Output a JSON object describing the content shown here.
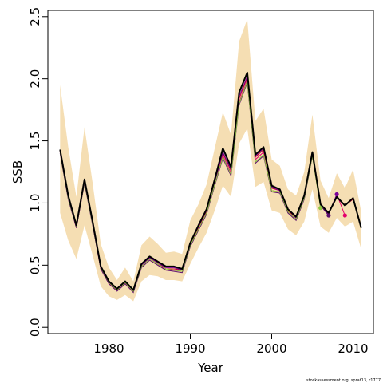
{
  "chart_data": {
    "type": "line",
    "title": "",
    "xlabel": "Year",
    "ylabel": "SSB",
    "xlim": [
      1972.5,
      2012.5
    ],
    "ylim": [
      -0.05,
      2.55
    ],
    "x_ticks": [
      1980,
      1990,
      2000,
      2010
    ],
    "x_tick_labels": [
      "1980",
      "1990",
      "2000",
      "2010"
    ],
    "y_ticks": [
      0.0,
      0.5,
      1.0,
      1.5,
      2.0,
      2.5
    ],
    "y_tick_labels": [
      "0.0",
      "0.5",
      "1.0",
      "1.5",
      "2.0",
      "2.5"
    ],
    "grid": false,
    "legend": "none",
    "credit": "stockassessment.org, sprat13, r1777",
    "colors": {
      "band": "#f5deb3",
      "final": "#000000",
      "retro": [
        "#c0002a",
        "#e4006b",
        "#7a0099",
        "#5c0f6e",
        "#8dc63f"
      ]
    },
    "band": {
      "x": [
        1974,
        1975,
        1976,
        1977,
        1978,
        1979,
        1980,
        1981,
        1982,
        1983,
        1984,
        1985,
        1986,
        1987,
        1988,
        1989,
        1990,
        1991,
        1992,
        1993,
        1994,
        1995,
        1996,
        1997,
        1998,
        1999,
        2000,
        2001,
        2002,
        2003,
        2004,
        2005,
        2006,
        2007,
        2008,
        2009,
        2010,
        2011
      ],
      "low": [
        0.92,
        0.7,
        0.55,
        0.82,
        0.58,
        0.33,
        0.25,
        0.22,
        0.26,
        0.21,
        0.37,
        0.42,
        0.41,
        0.38,
        0.38,
        0.37,
        0.51,
        0.64,
        0.76,
        0.94,
        1.14,
        1.05,
        1.48,
        1.6,
        1.13,
        1.17,
        0.94,
        0.92,
        0.79,
        0.74,
        0.85,
        1.11,
        0.81,
        0.76,
        0.88,
        0.81,
        0.85,
        0.63
      ],
      "high": [
        1.95,
        1.45,
        1.05,
        1.61,
        1.16,
        0.67,
        0.48,
        0.38,
        0.48,
        0.37,
        0.66,
        0.73,
        0.67,
        0.6,
        0.61,
        0.59,
        0.86,
        0.99,
        1.15,
        1.44,
        1.73,
        1.55,
        2.3,
        2.48,
        1.66,
        1.76,
        1.35,
        1.3,
        1.11,
        1.06,
        1.25,
        1.71,
        1.18,
        1.04,
        1.24,
        1.12,
        1.27,
        0.93
      ]
    },
    "final": {
      "x": [
        1974,
        1975,
        1976,
        1977,
        1978,
        1979,
        1980,
        1981,
        1982,
        1983,
        1984,
        1985,
        1986,
        1987,
        1988,
        1989,
        1990,
        1991,
        1992,
        1993,
        1994,
        1995,
        1996,
        1997,
        1998,
        1999,
        2000,
        2001,
        2002,
        2003,
        2004,
        2005,
        2006,
        2007,
        2008,
        2009,
        2010,
        2011
      ],
      "y": [
        1.43,
        1.06,
        0.82,
        1.19,
        0.85,
        0.49,
        0.37,
        0.31,
        0.37,
        0.3,
        0.51,
        0.57,
        0.53,
        0.49,
        0.49,
        0.47,
        0.68,
        0.82,
        0.95,
        1.19,
        1.44,
        1.29,
        1.89,
        2.05,
        1.39,
        1.45,
        1.14,
        1.11,
        0.95,
        0.89,
        1.06,
        1.41,
        0.99,
        0.92,
        1.05,
        0.98,
        1.04,
        0.8
      ]
    },
    "retros": [
      {
        "x": [
          1974,
          1975,
          1976,
          1977,
          1978,
          1979,
          1980,
          1981,
          1982,
          1983,
          1984,
          1985,
          1986,
          1987,
          1988,
          1989,
          1990,
          1991,
          1992,
          1993,
          1994,
          1995,
          1996,
          1997,
          1998,
          1999,
          2000,
          2001,
          2002,
          2003,
          2004,
          2005,
          2006,
          2007,
          2008,
          2009,
          2010
        ],
        "y": [
          1.42,
          1.05,
          0.81,
          1.18,
          0.84,
          0.48,
          0.36,
          0.3,
          0.36,
          0.29,
          0.5,
          0.56,
          0.52,
          0.47,
          0.47,
          0.46,
          0.67,
          0.8,
          0.93,
          1.16,
          1.4,
          1.26,
          1.84,
          2.01,
          1.37,
          1.43,
          1.12,
          1.1,
          0.94,
          0.88,
          1.05,
          1.4,
          0.99,
          0.92,
          1.05,
          0.98,
          1.03
        ]
      },
      {
        "x": [
          1974,
          1975,
          1976,
          1977,
          1978,
          1979,
          1980,
          1981,
          1982,
          1983,
          1984,
          1985,
          1986,
          1987,
          1988,
          1989,
          1990,
          1991,
          1992,
          1993,
          1994,
          1995,
          1996,
          1997,
          1998,
          1999,
          2000,
          2001,
          2002,
          2003,
          2004,
          2005,
          2006,
          2007,
          2008,
          2009
        ],
        "y": [
          1.41,
          1.04,
          0.8,
          1.17,
          0.83,
          0.47,
          0.35,
          0.3,
          0.35,
          0.29,
          0.49,
          0.55,
          0.51,
          0.46,
          0.46,
          0.45,
          0.66,
          0.79,
          0.92,
          1.15,
          1.38,
          1.24,
          1.81,
          1.99,
          1.35,
          1.41,
          1.1,
          1.09,
          0.93,
          0.87,
          1.04,
          1.39,
          0.98,
          0.91,
          1.07,
          0.9
        ]
      },
      {
        "x": [
          1974,
          1975,
          1976,
          1977,
          1978,
          1979,
          1980,
          1981,
          1982,
          1983,
          1984,
          1985,
          1986,
          1987,
          1988,
          1989,
          1990,
          1991,
          1992,
          1993,
          1994,
          1995,
          1996,
          1997,
          1998,
          1999,
          2000,
          2001,
          2002,
          2003,
          2004,
          2005,
          2006,
          2007,
          2008
        ],
        "y": [
          1.42,
          1.06,
          0.82,
          1.18,
          0.85,
          0.48,
          0.36,
          0.31,
          0.36,
          0.3,
          0.5,
          0.56,
          0.52,
          0.48,
          0.48,
          0.46,
          0.68,
          0.81,
          0.94,
          1.17,
          1.41,
          1.27,
          1.86,
          2.02,
          1.38,
          1.44,
          1.13,
          1.1,
          0.95,
          0.88,
          1.05,
          1.41,
          0.99,
          0.91,
          1.07
        ]
      },
      {
        "x": [
          1974,
          1975,
          1976,
          1977,
          1978,
          1979,
          1980,
          1981,
          1982,
          1983,
          1984,
          1985,
          1986,
          1987,
          1988,
          1989,
          1990,
          1991,
          1992,
          1993,
          1994,
          1995,
          1996,
          1997,
          1998,
          1999,
          2000,
          2001,
          2002,
          2003,
          2004,
          2005,
          2006,
          2007
        ],
        "y": [
          1.4,
          1.03,
          0.8,
          1.16,
          0.82,
          0.47,
          0.35,
          0.29,
          0.35,
          0.28,
          0.48,
          0.54,
          0.5,
          0.46,
          0.45,
          0.44,
          0.65,
          0.78,
          0.91,
          1.14,
          1.36,
          1.22,
          1.79,
          1.97,
          1.32,
          1.38,
          1.09,
          1.08,
          0.92,
          0.86,
          1.03,
          1.38,
          0.98,
          0.9
        ]
      },
      {
        "x": [
          1974,
          1975,
          1976,
          1977,
          1978,
          1979,
          1980,
          1981,
          1982,
          1983,
          1984,
          1985,
          1986,
          1987,
          1988,
          1989,
          1990,
          1991,
          1992,
          1993,
          1994,
          1995,
          1996,
          1997,
          1998,
          1999,
          2000,
          2001,
          2002,
          2003,
          2004,
          2005,
          2006
        ],
        "y": [
          1.41,
          1.04,
          0.81,
          1.17,
          0.83,
          0.48,
          0.36,
          0.3,
          0.36,
          0.29,
          0.49,
          0.55,
          0.51,
          0.47,
          0.46,
          0.45,
          0.66,
          0.79,
          0.92,
          1.15,
          1.37,
          1.23,
          1.8,
          1.98,
          1.33,
          1.39,
          1.1,
          1.09,
          0.93,
          0.87,
          1.04,
          1.38,
          0.96
        ]
      }
    ],
    "retro_endpoints": [
      {
        "x": 2006,
        "y": 0.96
      },
      {
        "x": 2007,
        "y": 0.9
      },
      {
        "x": 2008,
        "y": 1.07
      },
      {
        "x": 2009,
        "y": 0.9
      }
    ]
  }
}
